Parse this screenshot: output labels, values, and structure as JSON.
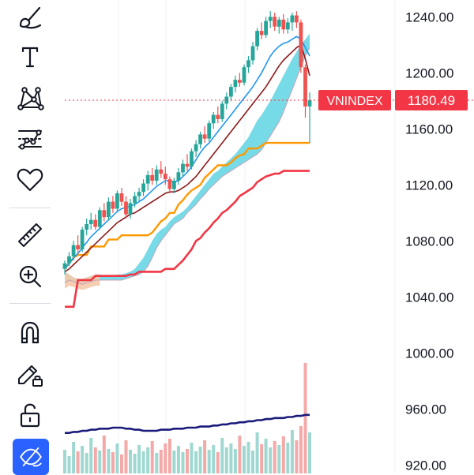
{
  "toolbar": {
    "tools": [
      {
        "name": "brush-tool",
        "icon": "brush-icon"
      },
      {
        "name": "text-tool",
        "icon": "text-icon"
      },
      {
        "name": "pattern-tool",
        "icon": "xabcd-pattern-icon"
      },
      {
        "name": "prediction-tool",
        "icon": "forecast-icon"
      },
      {
        "name": "favorites-tool",
        "icon": "heart-icon"
      },
      {
        "name": "measure-tool",
        "icon": "ruler-icon"
      },
      {
        "name": "zoom-tool",
        "icon": "zoom-in-icon"
      },
      {
        "name": "magnet-tool",
        "icon": "magnet-icon"
      },
      {
        "name": "lock-drawings-tool",
        "icon": "pencil-lock-icon"
      },
      {
        "name": "lock-all-tool",
        "icon": "unlock-icon"
      },
      {
        "name": "hide-drawings-tool",
        "icon": "eye-off-icon",
        "active": true
      }
    ]
  },
  "chart_data": {
    "type": "candlestick",
    "symbol": "VNINDEX",
    "last_price": "1180.49",
    "price_axis": {
      "ticks": [
        "1240.00",
        "1200.00",
        "1160.00",
        "1120.00",
        "1080.00",
        "1040.00",
        "1000.00",
        "960.00",
        "920.00"
      ],
      "tick_values": [
        1240,
        1200,
        1160,
        1120,
        1080,
        1040,
        1000,
        960,
        920
      ],
      "ylim": [
        914,
        1252
      ]
    },
    "current_price_line": 1180.49,
    "candles": [
      [
        1060,
        1066,
        1056,
        1064
      ],
      [
        1064,
        1072,
        1062,
        1069
      ],
      [
        1069,
        1080,
        1066,
        1077
      ],
      [
        1077,
        1084,
        1071,
        1074
      ],
      [
        1074,
        1090,
        1072,
        1088
      ],
      [
        1088,
        1096,
        1084,
        1092
      ],
      [
        1092,
        1100,
        1088,
        1095
      ],
      [
        1095,
        1099,
        1088,
        1090
      ],
      [
        1090,
        1104,
        1088,
        1102
      ],
      [
        1102,
        1107,
        1094,
        1097
      ],
      [
        1097,
        1111,
        1095,
        1108
      ],
      [
        1108,
        1112,
        1100,
        1103
      ],
      [
        1103,
        1116,
        1101,
        1114
      ],
      [
        1114,
        1118,
        1105,
        1108
      ],
      [
        1108,
        1112,
        1096,
        1099
      ],
      [
        1099,
        1110,
        1096,
        1107
      ],
      [
        1107,
        1115,
        1104,
        1112
      ],
      [
        1112,
        1118,
        1108,
        1115
      ],
      [
        1115,
        1124,
        1112,
        1121
      ],
      [
        1121,
        1130,
        1116,
        1127
      ],
      [
        1127,
        1132,
        1120,
        1123
      ],
      [
        1123,
        1134,
        1120,
        1131
      ],
      [
        1131,
        1137,
        1125,
        1128
      ],
      [
        1128,
        1133,
        1120,
        1124
      ],
      [
        1124,
        1126,
        1114,
        1117
      ],
      [
        1117,
        1125,
        1114,
        1123
      ],
      [
        1123,
        1132,
        1120,
        1129
      ],
      [
        1129,
        1138,
        1126,
        1135
      ],
      [
        1135,
        1142,
        1130,
        1133
      ],
      [
        1133,
        1146,
        1131,
        1144
      ],
      [
        1144,
        1152,
        1140,
        1149
      ],
      [
        1149,
        1158,
        1146,
        1156
      ],
      [
        1156,
        1162,
        1150,
        1153
      ],
      [
        1153,
        1166,
        1151,
        1164
      ],
      [
        1164,
        1172,
        1160,
        1170
      ],
      [
        1170,
        1176,
        1164,
        1167
      ],
      [
        1167,
        1180,
        1165,
        1178
      ],
      [
        1178,
        1186,
        1174,
        1183
      ],
      [
        1183,
        1192,
        1180,
        1190
      ],
      [
        1190,
        1198,
        1186,
        1195
      ],
      [
        1195,
        1200,
        1190,
        1193
      ],
      [
        1193,
        1206,
        1191,
        1204
      ],
      [
        1204,
        1212,
        1200,
        1209
      ],
      [
        1209,
        1222,
        1206,
        1219
      ],
      [
        1219,
        1232,
        1216,
        1230
      ],
      [
        1230,
        1236,
        1224,
        1227
      ],
      [
        1227,
        1240,
        1225,
        1237
      ],
      [
        1237,
        1244,
        1232,
        1240
      ],
      [
        1240,
        1243,
        1230,
        1233
      ],
      [
        1233,
        1240,
        1228,
        1238
      ],
      [
        1238,
        1242,
        1228,
        1231
      ],
      [
        1231,
        1239,
        1228,
        1236
      ],
      [
        1236,
        1243,
        1230,
        1241
      ],
      [
        1241,
        1244,
        1232,
        1236
      ],
      [
        1236,
        1238,
        1200,
        1204
      ],
      [
        1204,
        1206,
        1168,
        1176
      ],
      [
        1176,
        1186,
        1150,
        1180.49
      ]
    ],
    "volume": [
      30,
      22,
      40,
      28,
      35,
      26,
      45,
      33,
      29,
      48,
      31,
      27,
      38,
      24,
      42,
      30,
      25,
      36,
      28,
      33,
      41,
      26,
      30,
      38,
      44,
      29,
      35,
      27,
      31,
      39,
      28,
      34,
      42,
      30,
      36,
      27,
      45,
      33,
      38,
      31,
      48,
      35,
      40,
      29,
      52,
      37,
      44,
      33,
      41,
      36,
      47,
      39,
      55,
      42,
      60,
      140,
      52
    ],
    "volume_ma": [
      38,
      38,
      39,
      39,
      40,
      40,
      41,
      41,
      42,
      42,
      42,
      43,
      43,
      43,
      42,
      42,
      41,
      41,
      40,
      40,
      40,
      40,
      41,
      41,
      41,
      42,
      42,
      42,
      43,
      43,
      43,
      44,
      44,
      44,
      45,
      45,
      46,
      46,
      47,
      47,
      48,
      48,
      49,
      49,
      50,
      50,
      51,
      51,
      52,
      52,
      52,
      53,
      53,
      54,
      54,
      55,
      55
    ],
    "tenkan": [
      1060,
      1064,
      1068,
      1071,
      1075,
      1079,
      1083,
      1086,
      1089,
      1092,
      1095,
      1098,
      1101,
      1103,
      1104,
      1105,
      1106,
      1108,
      1110,
      1113,
      1116,
      1119,
      1121,
      1123,
      1123,
      1122,
      1123,
      1126,
      1129,
      1133,
      1138,
      1143,
      1147,
      1150,
      1154,
      1158,
      1162,
      1166,
      1170,
      1174,
      1178,
      1182,
      1186,
      1190,
      1195,
      1200,
      1206,
      1212,
      1216,
      1219,
      1221,
      1222,
      1224,
      1226,
      1224,
      1218,
      1212
    ],
    "kijun": [
      1058,
      1060,
      1063,
      1066,
      1069,
      1072,
      1075,
      1078,
      1081,
      1084,
      1087,
      1090,
      1093,
      1095,
      1097,
      1099,
      1100,
      1102,
      1104,
      1106,
      1108,
      1110,
      1112,
      1114,
      1115,
      1115,
      1116,
      1118,
      1120,
      1123,
      1126,
      1130,
      1134,
      1138,
      1142,
      1146,
      1150,
      1154,
      1158,
      1162,
      1166,
      1170,
      1174,
      1178,
      1182,
      1186,
      1190,
      1195,
      1200,
      1205,
      1209,
      1212,
      1215,
      1218,
      1220,
      1210,
      1198
    ],
    "senkou_a_line": [
      1060,
      1064,
      1068,
      1070,
      1070,
      1070,
      1076,
      1076,
      1076,
      1076,
      1081,
      1081,
      1081,
      1084,
      1084,
      1084,
      1084,
      1084,
      1084,
      1084,
      1086,
      1090,
      1094,
      1096,
      1100,
      1100,
      1106,
      1109,
      1113,
      1116,
      1118,
      1120,
      1125,
      1128,
      1131,
      1134,
      1134,
      1134,
      1136,
      1139,
      1141,
      1142,
      1146,
      1146,
      1146,
      1148,
      1150,
      1150,
      1150,
      1150,
      1150,
      1150,
      1150,
      1150,
      1150,
      1150,
      1150
    ],
    "senkou_b_line": [
      1033,
      1033,
      1033,
      1052,
      1052,
      1052,
      1052,
      1055,
      1055,
      1055,
      1055,
      1055,
      1055,
      1055,
      1055,
      1056,
      1056,
      1058,
      1058,
      1058,
      1058,
      1058,
      1058,
      1060,
      1060,
      1060,
      1063,
      1066,
      1070,
      1074,
      1080,
      1082,
      1086,
      1089,
      1093,
      1096,
      1100,
      1102,
      1105,
      1108,
      1112,
      1114,
      1116,
      1118,
      1122,
      1124,
      1126,
      1127,
      1128,
      1128,
      1130,
      1130,
      1130,
      1130,
      1130,
      1130,
      1130
    ],
    "cloud": {
      "upper": [
        1058,
        1056,
        1054,
        1053,
        1053,
        1054,
        1055,
        1056,
        1056,
        1055,
        1055,
        1055,
        1056,
        1056,
        1057,
        1058,
        1060,
        1064,
        1068,
        1074,
        1080,
        1085,
        1088,
        1090,
        1094,
        1097,
        1099,
        1101,
        1104,
        1108,
        1112,
        1116,
        1120,
        1124,
        1128,
        1130,
        1133,
        1136,
        1139,
        1142,
        1146,
        1150,
        1154,
        1160,
        1166,
        1170,
        1175,
        1180,
        1186,
        1192,
        1198,
        1204,
        1210,
        1215,
        1220,
        1224,
        1228
      ],
      "lower": [
        1050,
        1052,
        1051,
        1050,
        1049,
        1050,
        1051,
        1052,
        1052,
        1052,
        1052,
        1052,
        1052,
        1052,
        1053,
        1054,
        1055,
        1056,
        1058,
        1062,
        1068,
        1075,
        1080,
        1084,
        1088,
        1092,
        1094,
        1096,
        1100,
        1103,
        1106,
        1110,
        1113,
        1117,
        1120,
        1123,
        1126,
        1128,
        1130,
        1132,
        1134,
        1136,
        1138,
        1140,
        1142,
        1145,
        1150,
        1155,
        1160,
        1165,
        1172,
        1180,
        1188,
        1196,
        1204,
        1212,
        1218
      ]
    },
    "colors": {
      "up": "#26a69a",
      "down": "#ef5350",
      "tenkan": "#2196f3",
      "kijun": "#8b1a1a",
      "senkou_a": "#ff9800",
      "senkou_b": "#f23645",
      "cloud_bull": "#5fd3e3",
      "cloud_bear": "#f5c9a8",
      "volume_ma": "#1a1a7a",
      "price_tag": "#f23645"
    }
  }
}
